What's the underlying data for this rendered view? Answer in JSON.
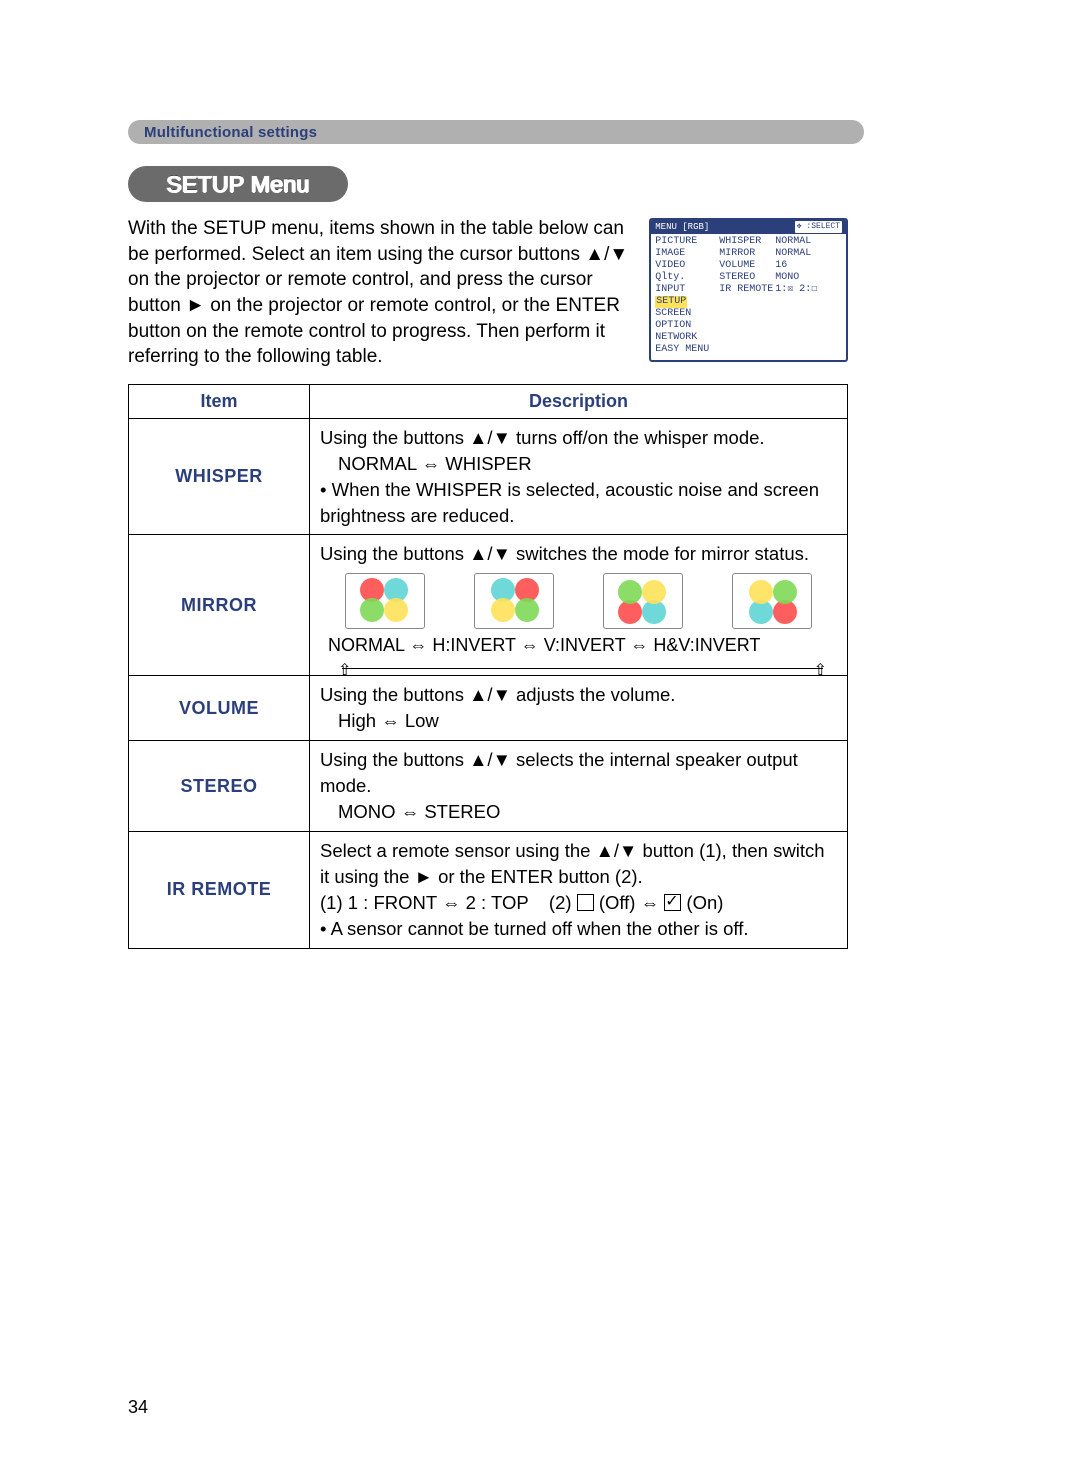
{
  "section_header": "Multifunctional settings",
  "title": "SETUP Menu",
  "intro": "With the SETUP menu, items shown in the table below can be performed.\nSelect an item using the cursor buttons ▲/▼ on the projector or remote control, and press the cursor button ► on the projector or remote control, or the ENTER button on the remote control to progress. Then perform it referring to the following table.",
  "osd": {
    "header_left": "MENU [RGB]",
    "header_right": ":SELECT",
    "col1": [
      "PICTURE",
      "IMAGE",
      "VIDEO Qlty.",
      "INPUT",
      "SETUP",
      "SCREEN",
      "OPTION",
      "NETWORK",
      "EASY MENU"
    ],
    "highlight_index": 4,
    "col2": [
      "WHISPER",
      "MIRROR",
      "VOLUME",
      "STEREO",
      "IR REMOTE"
    ],
    "col3": [
      "NORMAL",
      "NORMAL",
      "16",
      "MONO",
      "1:☒ 2:☐"
    ]
  },
  "table": {
    "headers": {
      "item": "Item",
      "desc": "Description"
    },
    "rows": [
      {
        "item": "WHISPER",
        "desc_line1": "Using the buttons ▲/▼ turns off/on the whisper mode.",
        "desc_line2": "NORMAL ⇔ WHISPER",
        "desc_bullet": "• When the WHISPER is selected, acoustic noise and screen brightness are reduced."
      },
      {
        "item": "MIRROR",
        "desc_line1": "Using the buttons ▲/▼ switches the mode for mirror status.",
        "labels": "NORMAL ⇔ H:INVERT ⇔ V:INVERT ⇔ H&V:INVERT",
        "colors": {
          "red": "#ff4d4d",
          "green": "#7ed957",
          "cyan": "#5fd4d4",
          "yellow": "#ffe15a",
          "border": "#888888"
        },
        "variants": [
          {
            "flipH": false,
            "flipV": false
          },
          {
            "flipH": true,
            "flipV": false
          },
          {
            "flipH": false,
            "flipV": true
          },
          {
            "flipH": true,
            "flipV": true
          }
        ]
      },
      {
        "item": "VOLUME",
        "desc_line1": "Using the buttons ▲/▼ adjusts the volume.",
        "desc_line2": "High ⇔ Low"
      },
      {
        "item": "STEREO",
        "desc_line1": "Using the buttons ▲/▼ selects the internal speaker output mode.",
        "desc_line2": "MONO ⇔ STEREO"
      },
      {
        "item": "IR REMOTE",
        "desc_line1": "Select a remote sensor using the ▲/▼ button (1), then switch it using the ► or the ENTER button (2).",
        "desc_line2a": "(1) 1 : FRONT ⇔ 2 : TOP",
        "desc_line2b_off": "(Off)",
        "desc_line2b_on": "(On)",
        "desc_bullet": "• A sensor cannot be turned off when the other is off."
      }
    ]
  },
  "page_number": "34"
}
